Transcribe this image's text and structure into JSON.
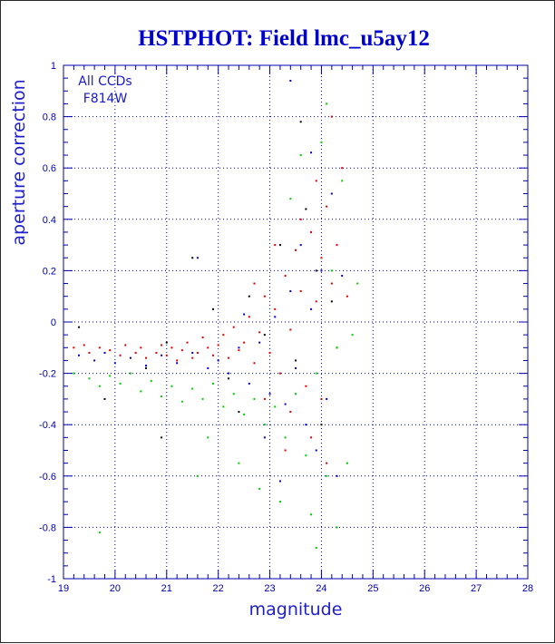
{
  "chart_data": {
    "type": "scatter",
    "title": "HSTPHOT: Field lmc_u5ay12",
    "xlabel": "magnitude",
    "ylabel": "aperture correction",
    "xlim": [
      19,
      28
    ],
    "ylim": [
      -1,
      1
    ],
    "x_ticks": [
      19,
      20,
      21,
      22,
      23,
      24,
      25,
      26,
      27,
      28
    ],
    "y_ticks": [
      -1,
      -0.8,
      -0.6,
      -0.4,
      -0.2,
      0,
      0.2,
      0.4,
      0.6,
      0.8,
      1
    ],
    "grid": true,
    "annotations": [
      "All CCDs",
      "F814W"
    ],
    "colors": {
      "axis": "#0000aa",
      "grid": "#0000aa",
      "title": "#0000cc"
    },
    "series": [
      {
        "color": "#dd0000",
        "points": [
          [
            19.2,
            -0.1
          ],
          [
            19.4,
            -0.09
          ],
          [
            19.5,
            -0.12
          ],
          [
            19.7,
            -0.1
          ],
          [
            19.9,
            -0.11
          ],
          [
            20.1,
            -0.13
          ],
          [
            20.2,
            -0.09
          ],
          [
            20.4,
            -0.12
          ],
          [
            20.5,
            -0.1
          ],
          [
            20.6,
            -0.14
          ],
          [
            20.8,
            -0.12
          ],
          [
            20.9,
            -0.09
          ],
          [
            21.0,
            -0.13
          ],
          [
            21.1,
            -0.1
          ],
          [
            21.2,
            -0.15
          ],
          [
            21.3,
            -0.11
          ],
          [
            21.4,
            -0.08
          ],
          [
            21.5,
            -0.14
          ],
          [
            21.6,
            -0.12
          ],
          [
            21.7,
            -0.06
          ],
          [
            21.8,
            -0.1
          ],
          [
            21.9,
            -0.13
          ],
          [
            22.0,
            -0.09
          ],
          [
            22.1,
            -0.05
          ],
          [
            22.2,
            -0.14
          ],
          [
            22.3,
            -0.02
          ],
          [
            22.4,
            -0.11
          ],
          [
            22.5,
            -0.08
          ],
          [
            22.6,
            0.02
          ],
          [
            22.7,
            -0.16
          ],
          [
            22.8,
            -0.04
          ],
          [
            22.9,
            0.1
          ],
          [
            23.0,
            -0.12
          ],
          [
            23.1,
            0.05
          ],
          [
            23.2,
            -0.2
          ],
          [
            23.3,
            0.18
          ],
          [
            23.4,
            -0.03
          ],
          [
            23.5,
            0.28
          ],
          [
            23.6,
            0.12
          ],
          [
            23.7,
            -0.25
          ],
          [
            23.8,
            0.35
          ],
          [
            23.9,
            0.08
          ],
          [
            24.0,
            -0.3
          ],
          [
            24.1,
            0.45
          ],
          [
            24.2,
            0.15
          ],
          [
            24.3,
            -0.1
          ],
          [
            24.4,
            0.6
          ],
          [
            24.2,
            0.8
          ],
          [
            23.9,
            0.55
          ],
          [
            23.6,
            0.4
          ],
          [
            24.0,
            0.25
          ],
          [
            23.4,
            -0.35
          ],
          [
            23.8,
            -0.45
          ],
          [
            24.1,
            -0.55
          ],
          [
            22.9,
            -0.3
          ],
          [
            23.3,
            -0.5
          ],
          [
            24.3,
            0.3
          ],
          [
            24.5,
            0.1
          ],
          [
            22.7,
            0.15
          ],
          [
            23.1,
            0.3
          ]
        ]
      },
      {
        "color": "#0000cc",
        "points": [
          [
            19.3,
            -0.13
          ],
          [
            19.6,
            -0.15
          ],
          [
            19.8,
            -0.12
          ],
          [
            20.0,
            -0.16
          ],
          [
            20.3,
            -0.14
          ],
          [
            20.6,
            -0.17
          ],
          [
            20.9,
            -0.13
          ],
          [
            21.2,
            -0.16
          ],
          [
            21.5,
            -0.12
          ],
          [
            21.8,
            -0.18
          ],
          [
            22.0,
            -0.15
          ],
          [
            22.2,
            -0.2
          ],
          [
            22.4,
            -0.1
          ],
          [
            22.6,
            -0.24
          ],
          [
            22.8,
            -0.08
          ],
          [
            23.0,
            -0.28
          ],
          [
            23.1,
            0.02
          ],
          [
            23.3,
            -0.32
          ],
          [
            23.4,
            0.12
          ],
          [
            23.5,
            -0.18
          ],
          [
            23.6,
            0.3
          ],
          [
            23.7,
            -0.4
          ],
          [
            23.8,
            0.05
          ],
          [
            23.9,
            -0.5
          ],
          [
            24.0,
            0.2
          ],
          [
            24.1,
            -0.3
          ],
          [
            24.2,
            0.5
          ],
          [
            24.3,
            -0.6
          ],
          [
            23.4,
            0.94
          ],
          [
            23.8,
            0.66
          ],
          [
            22.9,
            -0.45
          ],
          [
            21.6,
            0.25
          ],
          [
            23.2,
            -0.62
          ],
          [
            24.4,
            0.18
          ],
          [
            22.5,
            0.03
          ]
        ]
      },
      {
        "color": "#00cc00",
        "points": [
          [
            19.2,
            -0.2
          ],
          [
            19.5,
            -0.22
          ],
          [
            19.7,
            -0.25
          ],
          [
            19.9,
            -0.21
          ],
          [
            20.1,
            -0.24
          ],
          [
            20.3,
            -0.2
          ],
          [
            20.5,
            -0.27
          ],
          [
            20.7,
            -0.23
          ],
          [
            20.9,
            -0.29
          ],
          [
            21.1,
            -0.25
          ],
          [
            21.3,
            -0.31
          ],
          [
            21.5,
            -0.26
          ],
          [
            21.7,
            -0.3
          ],
          [
            21.9,
            -0.24
          ],
          [
            22.1,
            -0.33
          ],
          [
            22.3,
            -0.28
          ],
          [
            22.5,
            -0.36
          ],
          [
            22.7,
            -0.3
          ],
          [
            22.9,
            -0.4
          ],
          [
            23.1,
            -0.33
          ],
          [
            23.3,
            -0.45
          ],
          [
            23.5,
            -0.28
          ],
          [
            23.7,
            -0.52
          ],
          [
            23.9,
            -0.2
          ],
          [
            24.1,
            -0.6
          ],
          [
            24.3,
            -0.1
          ],
          [
            24.2,
            0.2
          ],
          [
            24.4,
            0.55
          ],
          [
            24.0,
            0.7
          ],
          [
            23.8,
            -0.75
          ],
          [
            24.3,
            -0.8
          ],
          [
            24.5,
            -0.55
          ],
          [
            23.6,
            0.65
          ],
          [
            24.6,
            -0.05
          ],
          [
            22.4,
            -0.55
          ],
          [
            22.8,
            -0.65
          ],
          [
            23.2,
            -0.7
          ],
          [
            21.8,
            -0.45
          ],
          [
            24.1,
            0.85
          ],
          [
            23.4,
            0.48
          ],
          [
            19.7,
            -0.82
          ],
          [
            21.6,
            -0.6
          ],
          [
            23.9,
            -0.88
          ],
          [
            24.7,
            0.15
          ]
        ]
      },
      {
        "color": "#000000",
        "points": [
          [
            19.3,
            -0.02
          ],
          [
            19.8,
            -0.3
          ],
          [
            20.6,
            -0.18
          ],
          [
            21.0,
            -0.08
          ],
          [
            21.5,
            0.25
          ],
          [
            21.9,
            0.05
          ],
          [
            22.2,
            -0.22
          ],
          [
            22.6,
            0.1
          ],
          [
            22.9,
            -0.05
          ],
          [
            23.2,
            0.3
          ],
          [
            23.5,
            -0.15
          ],
          [
            23.7,
            0.44
          ],
          [
            24.0,
            -0.4
          ],
          [
            24.2,
            0.08
          ],
          [
            23.6,
            0.78
          ],
          [
            22.4,
            -0.35
          ],
          [
            20.9,
            -0.45
          ],
          [
            23.9,
            0.2
          ]
        ]
      }
    ]
  }
}
